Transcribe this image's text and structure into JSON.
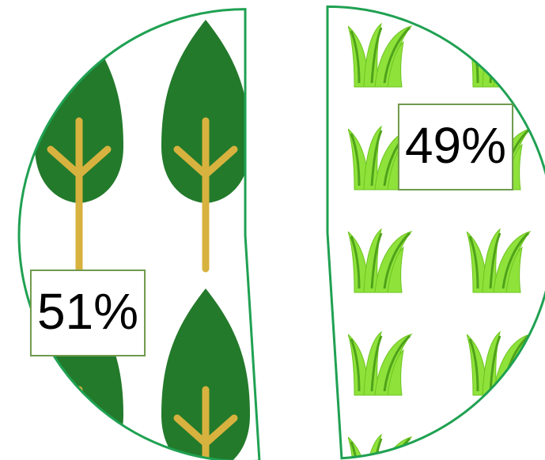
{
  "chart_data": {
    "type": "pie",
    "values": [
      49,
      51
    ],
    "value_labels": [
      "49%",
      "51%"
    ]
  }
}
